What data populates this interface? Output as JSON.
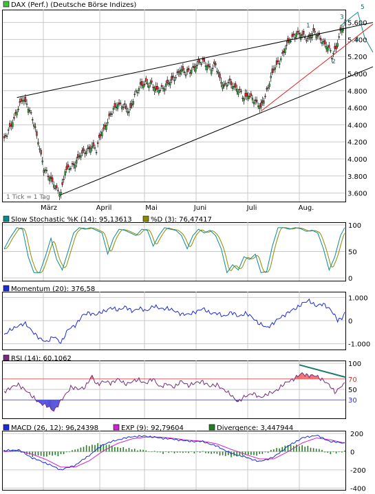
{
  "chart_data": [
    {
      "type": "candlestick",
      "title": "DAX (Perf.) (Deutsche Börse Indizes)",
      "legend_color": "#40c040",
      "y_ticks": [
        "5.600",
        "5.400",
        "5.200",
        "5.000",
        "4.800",
        "4.600",
        "4.400",
        "4.200",
        "4.000",
        "3.800",
        "3.600"
      ],
      "ylim": [
        3500,
        5750
      ],
      "x_months": [
        "März",
        "April",
        "Mai",
        "Juni",
        "Juli",
        "Aug."
      ],
      "note": "1 Tick = 1 Tag",
      "wave_labels": [
        "1",
        "2",
        "3",
        "4",
        "5"
      ],
      "close_anchors": [
        [
          0,
          4220
        ],
        [
          5,
          4400
        ],
        [
          10,
          4600
        ],
        [
          13,
          4700
        ],
        [
          16,
          4650
        ],
        [
          20,
          4480
        ],
        [
          24,
          4200
        ],
        [
          28,
          3900
        ],
        [
          33,
          3750
        ],
        [
          37,
          3650
        ],
        [
          40,
          3600
        ],
        [
          43,
          3850
        ],
        [
          46,
          3900
        ],
        [
          50,
          3950
        ],
        [
          54,
          4050
        ],
        [
          58,
          4100
        ],
        [
          62,
          4150
        ],
        [
          65,
          4100
        ],
        [
          68,
          4300
        ],
        [
          72,
          4400
        ],
        [
          76,
          4550
        ],
        [
          80,
          4650
        ],
        [
          84,
          4620
        ],
        [
          88,
          4550
        ],
        [
          92,
          4750
        ],
        [
          96,
          4850
        ],
        [
          100,
          4900
        ],
        [
          104,
          4880
        ],
        [
          107,
          4800
        ],
        [
          110,
          4820
        ],
        [
          113,
          4850
        ],
        [
          117,
          4900
        ],
        [
          120,
          4950
        ],
        [
          124,
          5050
        ],
        [
          128,
          5000
        ],
        [
          132,
          5050
        ],
        [
          136,
          5100
        ],
        [
          140,
          5150
        ],
        [
          143,
          5100
        ],
        [
          146,
          5050
        ],
        [
          149,
          5100
        ],
        [
          152,
          4950
        ],
        [
          155,
          4850
        ],
        [
          158,
          4900
        ],
        [
          162,
          4850
        ],
        [
          166,
          4800
        ],
        [
          169,
          4700
        ],
        [
          172,
          4750
        ],
        [
          175,
          4720
        ],
        [
          178,
          4650
        ],
        [
          181,
          4600
        ],
        [
          184,
          4750
        ],
        [
          187,
          4900
        ],
        [
          190,
          5050
        ],
        [
          194,
          5150
        ],
        [
          198,
          5300
        ],
        [
          202,
          5400
        ],
        [
          206,
          5480
        ],
        [
          210,
          5450
        ],
        [
          214,
          5400
        ],
        [
          218,
          5500
        ],
        [
          222,
          5420
        ],
        [
          226,
          5350
        ],
        [
          229,
          5300
        ],
        [
          231,
          5200
        ],
        [
          234,
          5300
        ],
        [
          237,
          5500
        ],
        [
          240,
          5580
        ]
      ]
    },
    {
      "type": "line",
      "title": "Slow Stochastic %K (14): 95,13613",
      "series2_label": "%D (3): 76,47417",
      "k_color": "#0a8a8a",
      "d_color": "#8a8a00",
      "y_ticks": [
        "100",
        "50",
        "0"
      ],
      "ylim": [
        0,
        100
      ],
      "k_anchors": [
        [
          0,
          55
        ],
        [
          4,
          75
        ],
        [
          9,
          95
        ],
        [
          13,
          92
        ],
        [
          17,
          40
        ],
        [
          21,
          10
        ],
        [
          25,
          10
        ],
        [
          29,
          40
        ],
        [
          33,
          75
        ],
        [
          37,
          35
        ],
        [
          41,
          15
        ],
        [
          45,
          50
        ],
        [
          49,
          85
        ],
        [
          53,
          95
        ],
        [
          57,
          92
        ],
        [
          61,
          95
        ],
        [
          65,
          90
        ],
        [
          69,
          85
        ],
        [
          73,
          45
        ],
        [
          77,
          75
        ],
        [
          81,
          92
        ],
        [
          85,
          90
        ],
        [
          89,
          85
        ],
        [
          93,
          80
        ],
        [
          97,
          92
        ],
        [
          101,
          90
        ],
        [
          105,
          60
        ],
        [
          109,
          80
        ],
        [
          113,
          95
        ],
        [
          117,
          92
        ],
        [
          121,
          90
        ],
        [
          125,
          80
        ],
        [
          129,
          55
        ],
        [
          133,
          80
        ],
        [
          137,
          92
        ],
        [
          141,
          85
        ],
        [
          145,
          90
        ],
        [
          149,
          80
        ],
        [
          153,
          55
        ],
        [
          157,
          10
        ],
        [
          161,
          25
        ],
        [
          165,
          15
        ],
        [
          169,
          40
        ],
        [
          173,
          35
        ],
        [
          177,
          45
        ],
        [
          181,
          10
        ],
        [
          185,
          12
        ],
        [
          189,
          60
        ],
        [
          193,
          95
        ],
        [
          197,
          95
        ],
        [
          201,
          92
        ],
        [
          205,
          95
        ],
        [
          209,
          93
        ],
        [
          213,
          88
        ],
        [
          217,
          90
        ],
        [
          221,
          85
        ],
        [
          225,
          55
        ],
        [
          229,
          15
        ],
        [
          233,
          40
        ],
        [
          237,
          80
        ],
        [
          240,
          95
        ]
      ]
    },
    {
      "type": "line",
      "title": "Momentum (20): 376,58",
      "line_color": "#1a2ad6",
      "y_ticks": [
        "1.000",
        "0",
        "-1.000"
      ],
      "ylim": [
        -1250,
        1250
      ],
      "anchors": [
        [
          0,
          -600
        ],
        [
          5,
          -400
        ],
        [
          10,
          -200
        ],
        [
          15,
          -150
        ],
        [
          20,
          -450
        ],
        [
          25,
          -800
        ],
        [
          30,
          -900
        ],
        [
          35,
          -700
        ],
        [
          40,
          -950
        ],
        [
          45,
          -400
        ],
        [
          50,
          -200
        ],
        [
          55,
          200
        ],
        [
          60,
          350
        ],
        [
          65,
          250
        ],
        [
          70,
          400
        ],
        [
          75,
          550
        ],
        [
          80,
          450
        ],
        [
          85,
          600
        ],
        [
          90,
          400
        ],
        [
          95,
          550
        ],
        [
          100,
          400
        ],
        [
          105,
          650
        ],
        [
          110,
          500
        ],
        [
          115,
          550
        ],
        [
          120,
          400
        ],
        [
          125,
          300
        ],
        [
          130,
          250
        ],
        [
          135,
          400
        ],
        [
          140,
          500
        ],
        [
          145,
          350
        ],
        [
          150,
          300
        ],
        [
          155,
          200
        ],
        [
          160,
          350
        ],
        [
          165,
          200
        ],
        [
          170,
          300
        ],
        [
          175,
          150
        ],
        [
          180,
          -150
        ],
        [
          185,
          -300
        ],
        [
          190,
          -100
        ],
        [
          195,
          150
        ],
        [
          200,
          350
        ],
        [
          205,
          500
        ],
        [
          210,
          750
        ],
        [
          215,
          850
        ],
        [
          220,
          650
        ],
        [
          225,
          700
        ],
        [
          230,
          500
        ],
        [
          235,
          0
        ],
        [
          238,
          100
        ],
        [
          240,
          377
        ]
      ]
    },
    {
      "type": "line",
      "title": "RSI (14): 60,1062",
      "line_color": "#7a2a7a",
      "over_fill": "#f07070",
      "under_fill": "#5050e0",
      "y_ticks": [
        "100",
        "70",
        "50",
        "30"
      ],
      "ylim": [
        0,
        100
      ],
      "levels": [
        70,
        30
      ],
      "anchors": [
        [
          0,
          45
        ],
        [
          5,
          55
        ],
        [
          10,
          58
        ],
        [
          15,
          50
        ],
        [
          20,
          35
        ],
        [
          25,
          25
        ],
        [
          30,
          18
        ],
        [
          35,
          10
        ],
        [
          38,
          20
        ],
        [
          42,
          35
        ],
        [
          47,
          55
        ],
        [
          52,
          50
        ],
        [
          57,
          55
        ],
        [
          62,
          75
        ],
        [
          65,
          60
        ],
        [
          70,
          65
        ],
        [
          75,
          62
        ],
        [
          80,
          70
        ],
        [
          85,
          60
        ],
        [
          90,
          65
        ],
        [
          95,
          68
        ],
        [
          100,
          62
        ],
        [
          105,
          70
        ],
        [
          110,
          55
        ],
        [
          115,
          60
        ],
        [
          120,
          55
        ],
        [
          125,
          65
        ],
        [
          130,
          58
        ],
        [
          135,
          62
        ],
        [
          140,
          66
        ],
        [
          145,
          55
        ],
        [
          150,
          60
        ],
        [
          155,
          48
        ],
        [
          160,
          40
        ],
        [
          165,
          25
        ],
        [
          170,
          38
        ],
        [
          175,
          42
        ],
        [
          180,
          35
        ],
        [
          185,
          40
        ],
        [
          190,
          45
        ],
        [
          195,
          55
        ],
        [
          200,
          65
        ],
        [
          205,
          72
        ],
        [
          210,
          80
        ],
        [
          215,
          77
        ],
        [
          220,
          75
        ],
        [
          225,
          68
        ],
        [
          230,
          55
        ],
        [
          233,
          45
        ],
        [
          237,
          55
        ],
        [
          240,
          60
        ]
      ]
    },
    {
      "type": "line",
      "title_macd": "MACD (26, 12): 96,24398",
      "title_exp": "EXP (9): 92,79604",
      "title_div": "Divergence: 3,447944",
      "macd_color": "#1a2ad6",
      "exp_color": "#d020d0",
      "div_color": "#208020",
      "y_ticks": [
        "200",
        "0",
        "-200",
        "-400"
      ],
      "ylim": [
        -420,
        230
      ],
      "macd_anchors": [
        [
          0,
          10
        ],
        [
          10,
          20
        ],
        [
          20,
          -70
        ],
        [
          30,
          -130
        ],
        [
          40,
          -200
        ],
        [
          50,
          -150
        ],
        [
          60,
          -40
        ],
        [
          70,
          80
        ],
        [
          80,
          130
        ],
        [
          90,
          165
        ],
        [
          100,
          170
        ],
        [
          110,
          150
        ],
        [
          120,
          135
        ],
        [
          130,
          115
        ],
        [
          140,
          110
        ],
        [
          150,
          60
        ],
        [
          160,
          -20
        ],
        [
          170,
          -60
        ],
        [
          180,
          -110
        ],
        [
          190,
          -60
        ],
        [
          200,
          60
        ],
        [
          210,
          150
        ],
        [
          220,
          180
        ],
        [
          230,
          110
        ],
        [
          240,
          96
        ]
      ],
      "exp_anchors": [
        [
          0,
          0
        ],
        [
          10,
          10
        ],
        [
          20,
          -30
        ],
        [
          30,
          -90
        ],
        [
          40,
          -170
        ],
        [
          50,
          -170
        ],
        [
          60,
          -100
        ],
        [
          70,
          10
        ],
        [
          80,
          90
        ],
        [
          90,
          140
        ],
        [
          100,
          160
        ],
        [
          110,
          160
        ],
        [
          120,
          145
        ],
        [
          130,
          125
        ],
        [
          140,
          115
        ],
        [
          150,
          85
        ],
        [
          160,
          25
        ],
        [
          170,
          -30
        ],
        [
          180,
          -80
        ],
        [
          190,
          -80
        ],
        [
          200,
          0
        ],
        [
          210,
          95
        ],
        [
          220,
          150
        ],
        [
          230,
          130
        ],
        [
          240,
          93
        ]
      ]
    }
  ]
}
